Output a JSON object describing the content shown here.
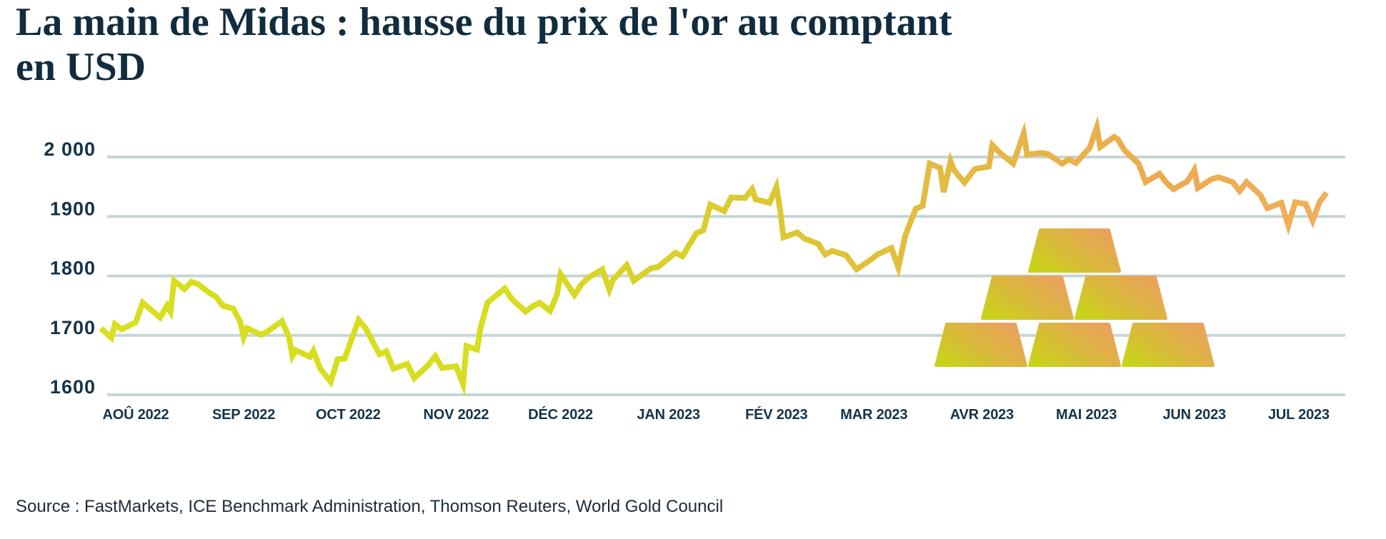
{
  "title": {
    "line1": "La main de Midas : hausse du prix de l'or au comptant",
    "line2": "en USD",
    "full": "La main de Midas : hausse du prix de l'or au comptant en USD"
  },
  "source": "Source : FastMarkets, ICE Benchmark Administration, Thomson Reuters, World Gold Council",
  "colors": {
    "title": "#112c3e",
    "axis_label": "#14334a",
    "gridline": "#c5d7d5",
    "source_text": "#1c2b38",
    "line_gradient": [
      "#d7df1e",
      "#d7dd20",
      "#dacc2d",
      "#e3bb40",
      "#ecab50",
      "#f1af5c"
    ],
    "ingot_gradient": [
      "#c8d419",
      "#d9b93a",
      "#ec9f61"
    ]
  },
  "chart_data": {
    "type": "line",
    "title": "La main de Midas : hausse du prix de l'or au comptant en USD",
    "series_name": "Prix de l'or au comptant (USD)",
    "unit": "USD",
    "grid": "horizontal",
    "legend": "none",
    "ylim": [
      1600,
      2060
    ],
    "y_axis": {
      "ticks": [
        {
          "label": "2 000",
          "value": 2000
        },
        {
          "label": "1900",
          "value": 1900
        },
        {
          "label": "1800",
          "value": 1800
        },
        {
          "label": "1700",
          "value": 1700
        },
        {
          "label": "1600",
          "value": 1600
        }
      ]
    },
    "x_axis": {
      "ticks": [
        {
          "label": "AOÛ 2022",
          "date": "2022-08-01"
        },
        {
          "label": "SEP 2022",
          "date": "2022-09-01"
        },
        {
          "label": "OCT 2022",
          "date": "2022-10-01"
        },
        {
          "label": "NOV 2022",
          "date": "2022-11-01"
        },
        {
          "label": "DÉC 2022",
          "date": "2022-12-01"
        },
        {
          "label": "JAN 2023",
          "date": "2023-01-01"
        },
        {
          "label": "FÉV 2023",
          "date": "2023-02-01"
        },
        {
          "label": "MAR 2023",
          "date": "2023-03-01"
        },
        {
          "label": "AVR 2023",
          "date": "2023-04-01"
        },
        {
          "label": "MAI 2023",
          "date": "2023-05-01"
        },
        {
          "label": "JUN 2023",
          "date": "2023-06-01"
        },
        {
          "label": "JUL 2023",
          "date": "2023-07-01"
        }
      ]
    },
    "points": [
      [
        "2022-07-22",
        1712
      ],
      [
        "2022-07-25",
        1696
      ],
      [
        "2022-07-26",
        1719
      ],
      [
        "2022-07-28",
        1710
      ],
      [
        "2022-08-01",
        1722
      ],
      [
        "2022-08-03",
        1755
      ],
      [
        "2022-08-08",
        1730
      ],
      [
        "2022-08-10",
        1750
      ],
      [
        "2022-08-11",
        1740
      ],
      [
        "2022-08-12",
        1792
      ],
      [
        "2022-08-15",
        1778
      ],
      [
        "2022-08-17",
        1790
      ],
      [
        "2022-08-19",
        1786
      ],
      [
        "2022-08-22",
        1772
      ],
      [
        "2022-08-24",
        1765
      ],
      [
        "2022-08-26",
        1750
      ],
      [
        "2022-08-29",
        1745
      ],
      [
        "2022-08-31",
        1723
      ],
      [
        "2022-09-01",
        1697
      ],
      [
        "2022-09-02",
        1712
      ],
      [
        "2022-09-06",
        1701
      ],
      [
        "2022-09-08",
        1707
      ],
      [
        "2022-09-12",
        1724
      ],
      [
        "2022-09-14",
        1697
      ],
      [
        "2022-09-15",
        1665
      ],
      [
        "2022-09-16",
        1675
      ],
      [
        "2022-09-20",
        1664
      ],
      [
        "2022-09-21",
        1674
      ],
      [
        "2022-09-23",
        1644
      ],
      [
        "2022-09-26",
        1622
      ],
      [
        "2022-09-28",
        1660
      ],
      [
        "2022-09-30",
        1661
      ],
      [
        "2022-10-04",
        1726
      ],
      [
        "2022-10-06",
        1712
      ],
      [
        "2022-10-10",
        1668
      ],
      [
        "2022-10-12",
        1673
      ],
      [
        "2022-10-14",
        1644
      ],
      [
        "2022-10-18",
        1652
      ],
      [
        "2022-10-20",
        1628
      ],
      [
        "2022-10-24",
        1650
      ],
      [
        "2022-10-26",
        1665
      ],
      [
        "2022-10-28",
        1645
      ],
      [
        "2022-11-01",
        1648
      ],
      [
        "2022-11-03",
        1618
      ],
      [
        "2022-11-04",
        1682
      ],
      [
        "2022-11-07",
        1676
      ],
      [
        "2022-11-08",
        1712
      ],
      [
        "2022-11-10",
        1755
      ],
      [
        "2022-11-15",
        1779
      ],
      [
        "2022-11-17",
        1761
      ],
      [
        "2022-11-21",
        1740
      ],
      [
        "2022-11-23",
        1749
      ],
      [
        "2022-11-25",
        1755
      ],
      [
        "2022-11-28",
        1741
      ],
      [
        "2022-11-30",
        1769
      ],
      [
        "2022-12-01",
        1803
      ],
      [
        "2022-12-05",
        1768
      ],
      [
        "2022-12-07",
        1786
      ],
      [
        "2022-12-09",
        1797
      ],
      [
        "2022-12-13",
        1811
      ],
      [
        "2022-12-15",
        1777
      ],
      [
        "2022-12-16",
        1793
      ],
      [
        "2022-12-20",
        1818
      ],
      [
        "2022-12-22",
        1792
      ],
      [
        "2022-12-27",
        1813
      ],
      [
        "2022-12-29",
        1815
      ],
      [
        "2023-01-03",
        1839
      ],
      [
        "2023-01-05",
        1833
      ],
      [
        "2023-01-09",
        1872
      ],
      [
        "2023-01-11",
        1877
      ],
      [
        "2023-01-13",
        1920
      ],
      [
        "2023-01-17",
        1909
      ],
      [
        "2023-01-19",
        1932
      ],
      [
        "2023-01-23",
        1931
      ],
      [
        "2023-01-25",
        1946
      ],
      [
        "2023-01-26",
        1929
      ],
      [
        "2023-01-30",
        1923
      ],
      [
        "2023-02-01",
        1950
      ],
      [
        "2023-02-02",
        1913
      ],
      [
        "2023-02-03",
        1865
      ],
      [
        "2023-02-07",
        1873
      ],
      [
        "2023-02-09",
        1863
      ],
      [
        "2023-02-13",
        1854
      ],
      [
        "2023-02-15",
        1836
      ],
      [
        "2023-02-17",
        1842
      ],
      [
        "2023-02-21",
        1835
      ],
      [
        "2023-02-24",
        1811
      ],
      [
        "2023-02-28",
        1827
      ],
      [
        "2023-03-02",
        1836
      ],
      [
        "2023-03-06",
        1847
      ],
      [
        "2023-03-08",
        1814
      ],
      [
        "2023-03-10",
        1868
      ],
      [
        "2023-03-13",
        1913
      ],
      [
        "2023-03-15",
        1918
      ],
      [
        "2023-03-17",
        1989
      ],
      [
        "2023-03-20",
        1982
      ],
      [
        "2023-03-21",
        1941
      ],
      [
        "2023-03-23",
        1993
      ],
      [
        "2023-03-24",
        1978
      ],
      [
        "2023-03-27",
        1957
      ],
      [
        "2023-03-30",
        1980
      ],
      [
        "2023-04-03",
        1984
      ],
      [
        "2023-04-04",
        2020
      ],
      [
        "2023-04-06",
        2008
      ],
      [
        "2023-04-10",
        1989
      ],
      [
        "2023-04-13",
        2040
      ],
      [
        "2023-04-14",
        2004
      ],
      [
        "2023-04-18",
        2007
      ],
      [
        "2023-04-20",
        2005
      ],
      [
        "2023-04-24",
        1989
      ],
      [
        "2023-04-26",
        1996
      ],
      [
        "2023-04-28",
        1990
      ],
      [
        "2023-05-02",
        2016
      ],
      [
        "2023-05-04",
        2050
      ],
      [
        "2023-05-05",
        2017
      ],
      [
        "2023-05-09",
        2034
      ],
      [
        "2023-05-10",
        2030
      ],
      [
        "2023-05-12",
        2011
      ],
      [
        "2023-05-16",
        1989
      ],
      [
        "2023-05-18",
        1958
      ],
      [
        "2023-05-22",
        1972
      ],
      [
        "2023-05-24",
        1957
      ],
      [
        "2023-05-26",
        1946
      ],
      [
        "2023-05-30",
        1959
      ],
      [
        "2023-06-01",
        1978
      ],
      [
        "2023-06-02",
        1948
      ],
      [
        "2023-06-06",
        1963
      ],
      [
        "2023-06-08",
        1966
      ],
      [
        "2023-06-12",
        1958
      ],
      [
        "2023-06-14",
        1943
      ],
      [
        "2023-06-16",
        1958
      ],
      [
        "2023-06-20",
        1936
      ],
      [
        "2023-06-22",
        1914
      ],
      [
        "2023-06-26",
        1923
      ],
      [
        "2023-06-28",
        1885
      ],
      [
        "2023-06-30",
        1924
      ],
      [
        "2023-07-03",
        1921
      ],
      [
        "2023-07-05",
        1893
      ],
      [
        "2023-07-07",
        1925
      ],
      [
        "2023-07-09",
        1940
      ]
    ],
    "decoration": {
      "type": "gold-ingot-pyramid",
      "rows": [
        3,
        2,
        1
      ],
      "count": 6
    }
  }
}
